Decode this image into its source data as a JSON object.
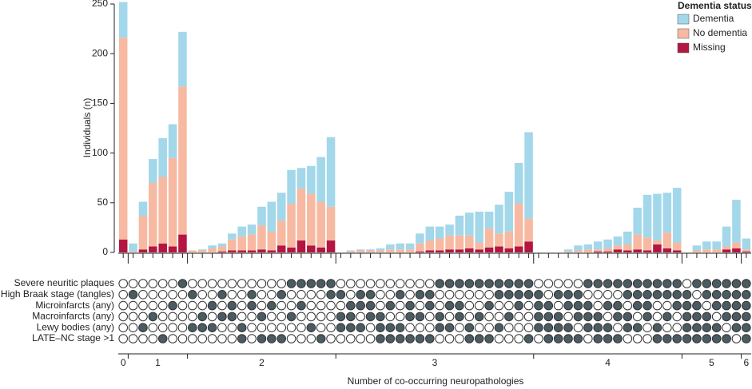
{
  "chart_data": {
    "type": "upset",
    "y_label": "Individuals (n)",
    "x_label": "Number of co-occurring neuropathologies",
    "legend_title": "Dementia status",
    "ylim": [
      0,
      250
    ],
    "yticks": [
      0,
      50,
      100,
      150,
      200,
      250
    ],
    "sets": [
      "Severe neuritic plaques",
      "High Braak stage (tangles)",
      "Microinfarcts (any)",
      "Macroinfarcts (any)",
      "Lewy bodies (any)",
      "LATE–NC stage >1"
    ],
    "group_labels": [
      0,
      1,
      2,
      3,
      4,
      5,
      6
    ],
    "membership": [
      [],
      [
        1
      ],
      [
        4
      ],
      [
        3
      ],
      [
        5
      ],
      [
        2
      ],
      [
        0
      ],
      [
        1,
        4
      ],
      [
        3,
        4
      ],
      [
        2,
        4
      ],
      [
        1,
        3
      ],
      [
        2,
        3
      ],
      [
        4,
        5
      ],
      [
        1,
        2
      ],
      [
        3,
        5
      ],
      [
        2,
        5
      ],
      [
        1,
        5
      ],
      [
        0,
        3
      ],
      [
        0,
        2
      ],
      [
        0,
        4
      ],
      [
        0,
        5
      ],
      [
        0,
        1
      ],
      [
        1,
        3,
        4
      ],
      [
        2,
        3,
        4
      ],
      [
        1,
        2,
        4
      ],
      [
        1,
        2,
        3
      ],
      [
        3,
        4,
        5
      ],
      [
        2,
        4,
        5
      ],
      [
        1,
        4,
        5
      ],
      [
        2,
        3,
        5
      ],
      [
        1,
        3,
        5
      ],
      [
        1,
        2,
        5
      ],
      [
        0,
        3,
        4
      ],
      [
        0,
        2,
        4
      ],
      [
        0,
        2,
        3
      ],
      [
        0,
        4,
        5
      ],
      [
        0,
        3,
        5
      ],
      [
        0,
        2,
        5
      ],
      [
        0,
        1,
        4
      ],
      [
        0,
        1,
        3
      ],
      [
        0,
        1,
        2
      ],
      [
        0,
        1,
        5
      ],
      [
        1,
        2,
        3,
        4
      ],
      [
        2,
        3,
        4,
        5
      ],
      [
        1,
        3,
        4,
        5
      ],
      [
        1,
        2,
        4,
        5
      ],
      [
        1,
        2,
        3,
        5
      ],
      [
        0,
        2,
        3,
        4
      ],
      [
        0,
        3,
        4,
        5
      ],
      [
        0,
        2,
        4,
        5
      ],
      [
        0,
        2,
        3,
        5
      ],
      [
        0,
        1,
        3,
        4
      ],
      [
        0,
        1,
        2,
        4
      ],
      [
        0,
        1,
        2,
        3
      ],
      [
        0,
        1,
        4,
        5
      ],
      [
        0,
        1,
        3,
        5
      ],
      [
        0,
        1,
        2,
        5
      ],
      [
        1,
        2,
        3,
        4,
        5
      ],
      [
        0,
        2,
        3,
        4,
        5
      ],
      [
        0,
        1,
        3,
        4,
        5
      ],
      [
        0,
        1,
        2,
        4,
        5
      ],
      [
        0,
        1,
        2,
        3,
        5
      ],
      [
        0,
        1,
        2,
        3,
        4
      ],
      [
        0,
        1,
        2,
        3,
        4,
        5
      ]
    ],
    "series": [
      {
        "name": "Dementia",
        "color": "#a3d7ea",
        "values": [
          36,
          8,
          14,
          24,
          39,
          34,
          55,
          0,
          1,
          3,
          3,
          6,
          10,
          10,
          19,
          30,
          28,
          34,
          21,
          28,
          45,
          70,
          0,
          1,
          1,
          1,
          2,
          5,
          6,
          6,
          10,
          14,
          12,
          11,
          20,
          23,
          31,
          17,
          29,
          40,
          41,
          87,
          0,
          0,
          0,
          2,
          5,
          5,
          8,
          9,
          9,
          13,
          27,
          43,
          47,
          40,
          55,
          0,
          5,
          8,
          8,
          20,
          43,
          11
        ]
      },
      {
        "name": "No dementia",
        "color": "#f7b9a1",
        "values": [
          203,
          1,
          34,
          64,
          67,
          89,
          149,
          2,
          2,
          4,
          5,
          11,
          14,
          16,
          24,
          19,
          25,
          44,
          52,
          52,
          46,
          34,
          0,
          1,
          2,
          2,
          2,
          3,
          3,
          3,
          8,
          10,
          12,
          14,
          14,
          13,
          7,
          19,
          13,
          17,
          43,
          23,
          0,
          0,
          0,
          1,
          2,
          3,
          2,
          3,
          4,
          6,
          15,
          13,
          4,
          16,
          8,
          0,
          2,
          3,
          3,
          3,
          6,
          2
        ]
      },
      {
        "name": "Missing",
        "color": "#b31640",
        "values": [
          13,
          0,
          3,
          6,
          9,
          6,
          18,
          0,
          0,
          0,
          1,
          2,
          2,
          2,
          3,
          2,
          7,
          5,
          12,
          7,
          5,
          12,
          0,
          0,
          0,
          0,
          0,
          0,
          0,
          0,
          1,
          2,
          2,
          3,
          3,
          4,
          3,
          5,
          6,
          4,
          6,
          11,
          0,
          0,
          0,
          0,
          0,
          0,
          1,
          1,
          3,
          2,
          3,
          2,
          8,
          4,
          2,
          0,
          0,
          0,
          0,
          3,
          4,
          1
        ]
      }
    ]
  }
}
